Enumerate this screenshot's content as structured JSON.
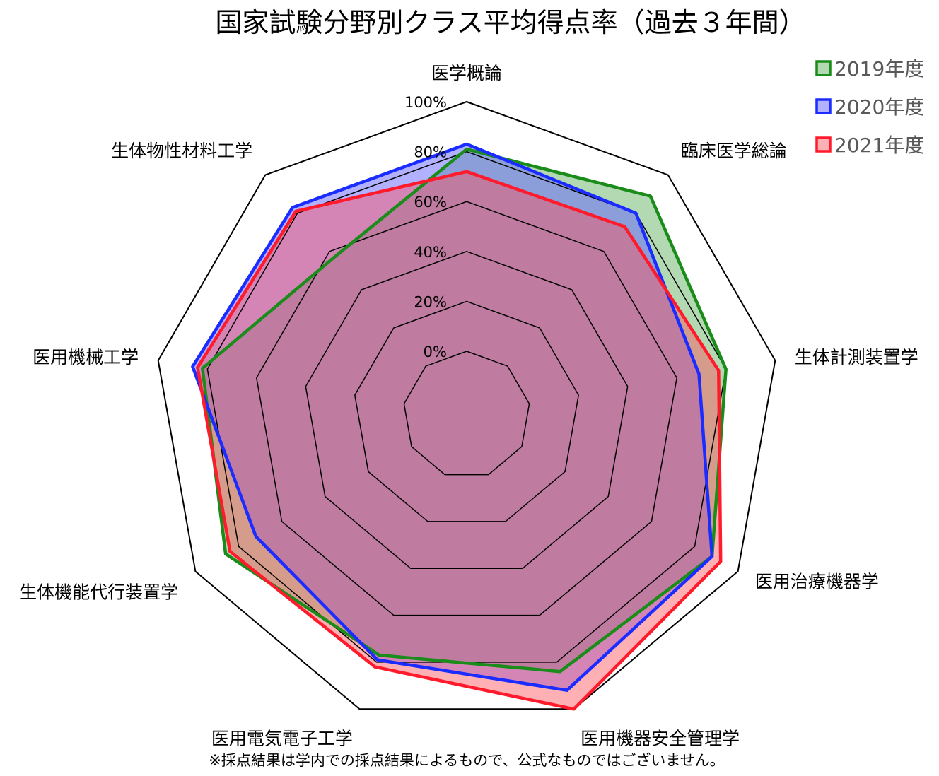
{
  "chart_data": {
    "type": "radar",
    "title": "国家試験分野別クラス平均得点率（過去３年間）",
    "axes": [
      "医学概論",
      "臨床医学総論",
      "生体計測装置学",
      "医用治療機器学",
      "医用機器安全管理学",
      "医用電気電子工学",
      "生体機能代行装置学",
      "医用機械工学",
      "生体物性材料工学"
    ],
    "tick_values": [
      0,
      20,
      40,
      60,
      80,
      100
    ],
    "tick_labels": [
      "0%",
      "20%",
      "40%",
      "60%",
      "80%",
      "100%"
    ],
    "range": [
      0,
      100
    ],
    "series": [
      {
        "name": "2019年度",
        "color": "#1a8c1a",
        "fill": "rgba(64,160,64,0.40)",
        "values": [
          81,
          89,
          80,
          88,
          84,
          77,
          86,
          82,
          57
        ]
      },
      {
        "name": "2020年度",
        "color": "#1a2cff",
        "fill": "rgba(100,100,255,0.50)",
        "values": [
          83,
          80,
          69,
          88,
          92,
          79,
          72,
          86,
          83
        ]
      },
      {
        "name": "2021年度",
        "color": "#ff1a2c",
        "fill": "rgba(255,80,90,0.45)",
        "values": [
          72,
          73,
          77,
          92,
          100,
          82,
          84,
          84,
          81
        ]
      }
    ],
    "legend_position": "top-right",
    "grid": true,
    "footnote": "※採点結果は学内での採点結果によるもので、公式なものではございません。"
  }
}
